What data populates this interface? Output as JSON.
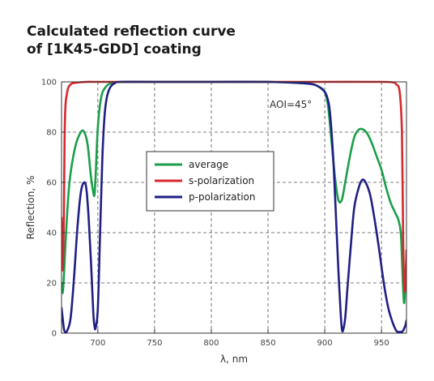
{
  "title_lines": [
    "Calculated reflection curve",
    "of [1K45-GDD] coating"
  ],
  "chart_data": {
    "type": "line",
    "title": "Calculated reflection curve of [1K45-GDD] coating",
    "xlabel": "λ, nm",
    "ylabel": "Reflection, %",
    "xlim": [
      668,
      972
    ],
    "ylim": [
      0,
      100
    ],
    "xticks": [
      700,
      750,
      800,
      850,
      900,
      950
    ],
    "yticks": [
      0,
      20,
      40,
      60,
      80,
      100
    ],
    "grid": true,
    "grid_style": "dashed",
    "legend_position": "center-left",
    "annotation": "AOI=45°",
    "series": [
      {
        "name": "average",
        "color": "#1a9e4a",
        "x": [
          668,
          669,
          670,
          672,
          675,
          680,
          685,
          688,
          691,
          694,
          696,
          697,
          698,
          700,
          703,
          707,
          712,
          720,
          750,
          800,
          850,
          880,
          890,
          895,
          900,
          903,
          906,
          909,
          912,
          915,
          918,
          922,
          926,
          930,
          934,
          938,
          942,
          946,
          950,
          954,
          958,
          962,
          965,
          967,
          968,
          969,
          970,
          971,
          972
        ],
        "y": [
          20,
          16,
          22,
          40,
          60,
          74,
          80,
          80,
          75,
          62,
          56,
          55,
          62,
          82,
          94,
          98,
          99.5,
          100,
          100,
          100,
          100,
          99.5,
          99,
          98,
          96,
          90,
          76,
          62,
          53,
          53,
          60,
          70,
          78,
          81,
          81,
          79,
          75,
          70,
          65,
          58,
          52,
          48,
          45,
          40,
          30,
          18,
          12,
          20,
          30
        ]
      },
      {
        "name": "s-polarization",
        "color": "#d8282d",
        "x": [
          668,
          669,
          670,
          671,
          673,
          676,
          680,
          690,
          700,
          750,
          800,
          850,
          900,
          950,
          960,
          963,
          966,
          968,
          969,
          970,
          971,
          972
        ],
        "y": [
          46,
          25,
          45,
          85,
          96,
          99,
          99.6,
          100,
          100,
          100,
          100,
          100,
          100,
          100,
          99.8,
          99,
          96,
          80,
          40,
          18,
          20,
          33
        ]
      },
      {
        "name": "p-polarization",
        "color": "#1f1f85",
        "x": [
          668,
          669,
          670,
          671,
          673,
          676,
          679,
          682,
          685,
          688,
          690,
          692,
          694,
          696,
          697,
          698,
          700,
          702,
          704,
          706,
          708,
          710,
          712,
          715,
          720,
          750,
          800,
          850,
          880,
          890,
          895,
          900,
          902,
          904,
          906,
          908,
          910,
          912,
          914,
          915,
          916,
          918,
          920,
          923,
          926,
          930,
          933,
          936,
          940,
          944,
          948,
          952,
          956,
          960,
          963,
          965,
          967,
          968,
          969,
          970,
          971,
          972
        ],
        "y": [
          10,
          6,
          2,
          0.5,
          1,
          6,
          22,
          42,
          56,
          60,
          57,
          45,
          28,
          8,
          3,
          2,
          10,
          40,
          70,
          87,
          94,
          97,
          98.5,
          99.5,
          100,
          100,
          100,
          100,
          99.5,
          99,
          98,
          96,
          94,
          90,
          80,
          65,
          45,
          25,
          8,
          2,
          1,
          6,
          18,
          35,
          50,
          58,
          61,
          60,
          55,
          45,
          33,
          20,
          10,
          4,
          1,
          0.5,
          0.5,
          0.5,
          1,
          2,
          3,
          5
        ]
      }
    ]
  }
}
